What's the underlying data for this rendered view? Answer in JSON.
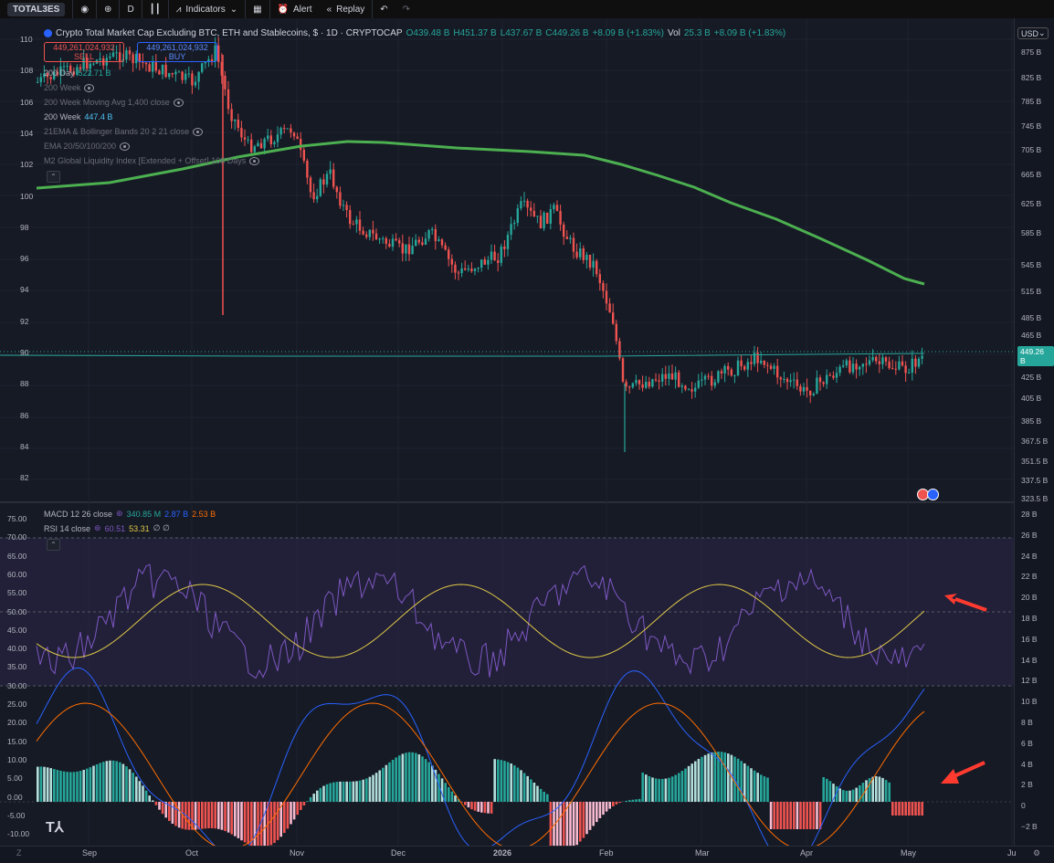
{
  "toolbar": {
    "symbol": "TOTAL3ES",
    "interval": "D",
    "indicators_label": "Indicators",
    "alert_label": "Alert",
    "replay_label": "Replay"
  },
  "main_legend": {
    "title": "Crypto Total Market Cap Excluding BTC, ETH and Stablecoins, $ · 1D · CRYPTOCAP",
    "open": "O439.48 B",
    "high": "H451.37 B",
    "low": "L437.67 B",
    "close": "C449.26 B",
    "change": "+8.09 B (+1.83%)",
    "vol_label": "Vol",
    "vol_value": "25.3 B",
    "vol_change": "+8.09 B (+1.83%)",
    "sell_price": "449,261,024,932",
    "sell_label": "SELL",
    "buy_price": "449,261,024,932",
    "buy_label": "BUY",
    "indicators": [
      {
        "label": "200 Day",
        "value": "522.71 B"
      },
      {
        "label": "200 Week",
        "value": ""
      },
      {
        "label": "200 Week Moving Avg 1,400 close",
        "value": ""
      },
      {
        "label": "200 Week",
        "value": "447.4 B"
      },
      {
        "label": "21EMA & Bollinger Bands 20 2 21 close",
        "value": ""
      },
      {
        "label": "EMA 20/50/100/200",
        "value": ""
      },
      {
        "label": "M2 Global Liquidity Index [Extended + Offset] 108 Days",
        "value": ""
      }
    ]
  },
  "pane2_legend": {
    "macd_label": "MACD 12 26 close",
    "macd_v1": "340.85 M",
    "macd_v2": "2.87 B",
    "macd_v3": "2.53 B",
    "rsi_label": "RSI 14 close",
    "rsi_v1": "60.51",
    "rsi_v2": "53.31",
    "rsi_v3": "∅ ∅"
  },
  "currency": "USD",
  "last_price_tag": "449.26 B",
  "left_scale_main": [
    "110",
    "108",
    "106",
    "104",
    "102",
    "100",
    "98",
    "96",
    "94",
    "92",
    "90",
    "88",
    "86",
    "84",
    "82"
  ],
  "right_scale_main": [
    "875 B",
    "825 B",
    "785 B",
    "745 B",
    "705 B",
    "665 B",
    "625 B",
    "585 B",
    "545 B",
    "515 B",
    "485 B",
    "465 B",
    "425 B",
    "405 B",
    "385 B",
    "367.5 B",
    "351.5 B",
    "337.5 B",
    "323.5 B"
  ],
  "left_scale_pane2": [
    "75.00",
    "70.00",
    "65.00",
    "60.00",
    "55.00",
    "50.00",
    "45.00",
    "40.00",
    "35.00",
    "30.00",
    "25.00",
    "20.00",
    "15.00",
    "10.00",
    "5.00",
    "0.00",
    "-5.00",
    "-10.00"
  ],
  "right_scale_pane2": [
    "28 B",
    "26 B",
    "24 B",
    "22 B",
    "20 B",
    "18 B",
    "16 B",
    "14 B",
    "12 B",
    "10 B",
    "8 B",
    "6 B",
    "4 B",
    "2 B",
    "0",
    "−2 B"
  ],
  "x_axis": [
    "Sep",
    "Oct",
    "Nov",
    "Dec",
    "2026",
    "Feb",
    "Mar",
    "Apr",
    "May",
    "Ju"
  ],
  "colors": {
    "up": "#26a69a",
    "down": "#ef5350",
    "ma200": "#4caf50",
    "rsi": "#7e57c2",
    "rsi_ma": "#e0c848",
    "macd": "#2962ff",
    "signal": "#ff6d00"
  }
}
